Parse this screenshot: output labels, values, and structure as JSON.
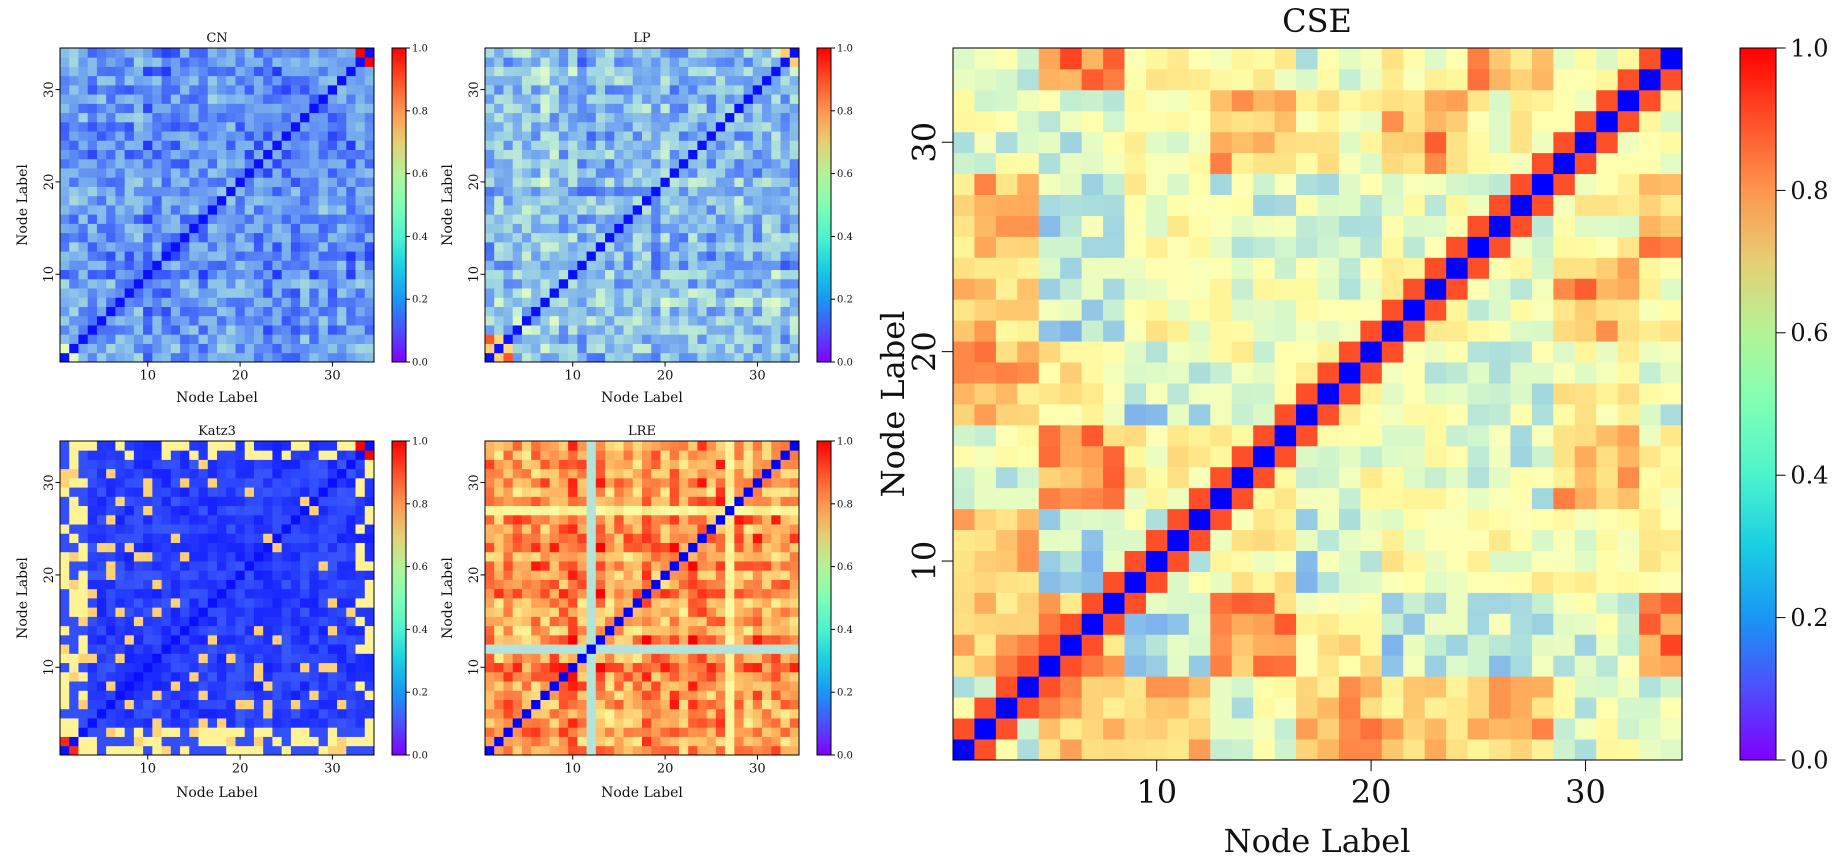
{
  "chart_data": [
    {
      "type": "heatmap",
      "title": "CN",
      "xlabel": "Node Label",
      "ylabel": "Node Label",
      "x_ticks": [
        10,
        20,
        30
      ],
      "y_ticks": [
        10,
        20,
        30
      ],
      "n_nodes": 34,
      "colormap": "rainbow",
      "vmin": 0.0,
      "vmax": 1.0,
      "colorbar_ticks": [
        "0.0",
        "0.2",
        "0.4",
        "0.6",
        "0.8",
        "1.0"
      ],
      "values_description": "pairwise similarity of 34 nodes; mostly low (0-0.3), diagonal 0, peaks near 1.0 at pair (33,34)"
    },
    {
      "type": "heatmap",
      "title": "LP",
      "xlabel": "Node Label",
      "ylabel": "Node Label",
      "x_ticks": [
        10,
        20,
        30
      ],
      "y_ticks": [
        10,
        20,
        30
      ],
      "n_nodes": 34,
      "colormap": "rainbow",
      "vmin": 0.0,
      "vmax": 1.0,
      "colorbar_ticks": [
        "0.0",
        "0.2",
        "0.4",
        "0.6",
        "0.8",
        "1.0"
      ],
      "values_description": "mostly low (0.05-0.35), slightly higher than CN"
    },
    {
      "type": "heatmap",
      "title": "Katz3",
      "xlabel": "Node Label",
      "ylabel": "Node Label",
      "x_ticks": [
        10,
        20,
        30
      ],
      "y_ticks": [
        10,
        20,
        30
      ],
      "n_nodes": 34,
      "colormap": "rainbow",
      "vmin": 0.0,
      "vmax": 1.0,
      "colorbar_ticks": [
        "0.0",
        "0.2",
        "0.4",
        "0.6",
        "0.8",
        "1.0"
      ],
      "values_description": "mostly near 0 with scattered moderate (0.5-0.7) cells, high values for nodes 1,2,33,34"
    },
    {
      "type": "heatmap",
      "title": "LRE",
      "xlabel": "Node Label",
      "ylabel": "Node Label",
      "x_ticks": [
        10,
        20,
        30
      ],
      "y_ticks": [
        10,
        20,
        30
      ],
      "n_nodes": 34,
      "colormap": "rainbow",
      "vmin": 0.0,
      "vmax": 1.0,
      "colorbar_ticks": [
        "0.0",
        "0.2",
        "0.4",
        "0.6",
        "0.8",
        "1.0"
      ],
      "values_description": "mostly high (0.6-1.0), diagonal 0, node 12 row/column around 0.35"
    },
    {
      "type": "heatmap",
      "title": "CSE",
      "xlabel": "Node Label",
      "ylabel": "Node Label",
      "x_ticks": [
        10,
        20,
        30
      ],
      "y_ticks": [
        10,
        20,
        30
      ],
      "n_nodes": 34,
      "colormap": "rainbow",
      "vmin": 0.0,
      "vmax": 1.0,
      "colorbar_ticks": [
        "0.0",
        "0.2",
        "0.4",
        "0.6",
        "0.8",
        "1.0"
      ],
      "values_description": "wide spread (0.1-1.0) with block structure, diagonal 0"
    }
  ]
}
